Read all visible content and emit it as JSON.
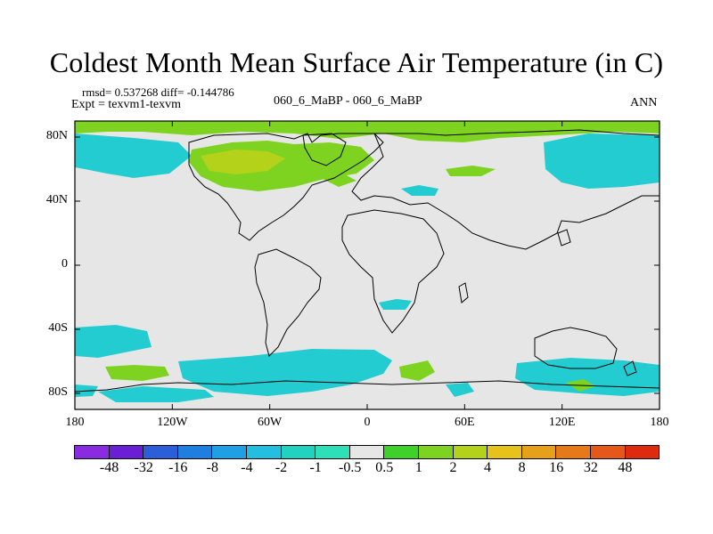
{
  "title": "Coldest Month Mean Surface Air Temperature (in C)",
  "stats": {
    "rmsd_line": "rmsd= 0.537268  diff= -0.144786",
    "expt_line": "Expt = texvm1-texvm"
  },
  "subtitle_center": "060_6_MaBP - 060_6_MaBP",
  "subtitle_right": "ANN",
  "axes": {
    "x_ticks": [
      "180",
      "120W",
      "60W",
      "0",
      "60E",
      "120E",
      "180"
    ],
    "y_ticks": [
      "80N",
      "40N",
      "0",
      "40S",
      "80S"
    ]
  },
  "colorbar": {
    "labels": [
      "-48",
      "-32",
      "-16",
      "-8",
      "-4",
      "-2",
      "-1",
      "-0.5",
      "0.5",
      "1",
      "2",
      "4",
      "8",
      "16",
      "32",
      "48"
    ],
    "colors": [
      "#8a2be2",
      "#6a1fd6",
      "#2a5fd9",
      "#1f7fe0",
      "#1fa0e6",
      "#24bfe0",
      "#22d2c0",
      "#2ee0b8",
      "#e6e6e6",
      "#3dd12a",
      "#7ed320",
      "#b5d21a",
      "#e6c31a",
      "#e6a01a",
      "#e67a1a",
      "#e6581a",
      "#e02a10"
    ]
  },
  "palette": {
    "background": "#e6e6e6",
    "cool": "#22ccd0",
    "cool_light": "#22d6c6",
    "warm": "#7ed320",
    "warm_deep": "#b5d21a"
  }
}
